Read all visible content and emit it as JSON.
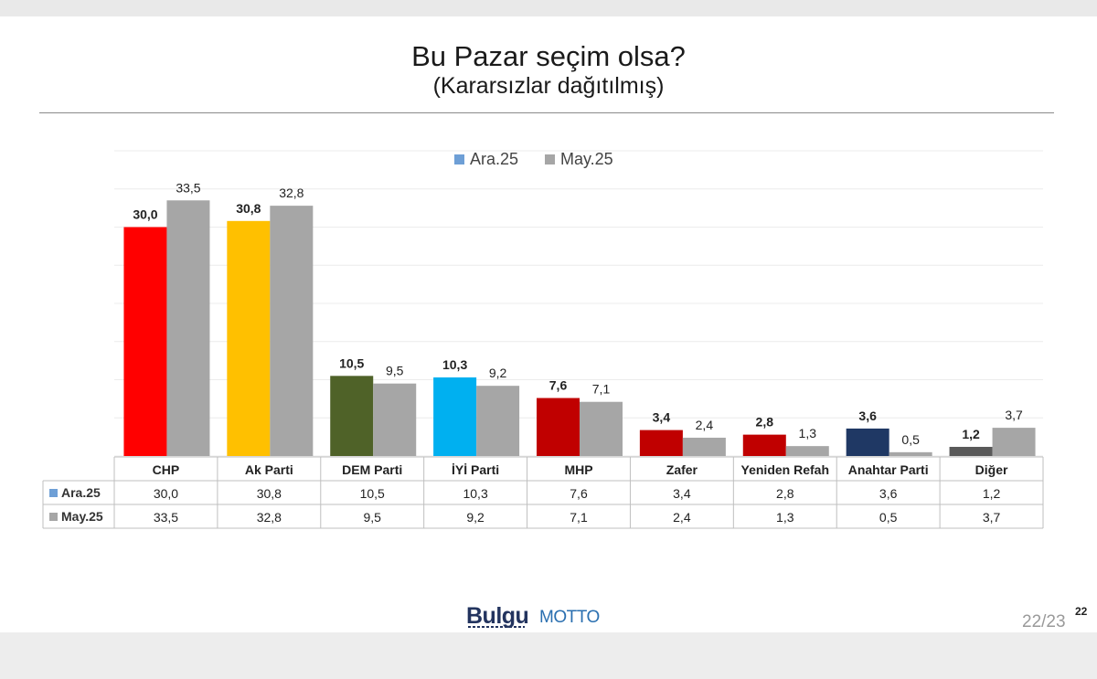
{
  "slide": {
    "title": "Bu Pazar seçim olsa?",
    "subtitle": "(Kararsızlar dağıtılmış)",
    "logo_primary": "Bulgu",
    "logo_secondary": "MOTTO",
    "page_number": "22/23",
    "page_superscript": "22"
  },
  "chart_data": {
    "type": "bar",
    "title": "Bu Pazar seçim olsa?",
    "subtitle": "(Kararsızlar dağıtılmış)",
    "categories": [
      "CHP",
      "Ak Parti",
      "DEM Parti",
      "İYİ Parti",
      "MHP",
      "Zafer",
      "Yeniden Refah",
      "Anahtar Parti",
      "Diğer"
    ],
    "series": [
      {
        "name": "Ara.25",
        "values": [
          30.0,
          30.8,
          10.5,
          10.3,
          7.6,
          3.4,
          2.8,
          3.6,
          1.2
        ],
        "labels": [
          "30,0",
          "30,8",
          "10,5",
          "10,3",
          "7,6",
          "3,4",
          "2,8",
          "3,6",
          "1,2"
        ],
        "colors": [
          "#ff0000",
          "#ffc000",
          "#4f6228",
          "#00b0f0",
          "#c00000",
          "#c00000",
          "#c00000",
          "#1f3864",
          "#595959"
        ],
        "legend_color": "#6e9fd6"
      },
      {
        "name": "May.25",
        "values": [
          33.5,
          32.8,
          9.5,
          9.2,
          7.1,
          2.4,
          1.3,
          0.5,
          3.7
        ],
        "labels": [
          "33,5",
          "32,8",
          "9,5",
          "9,2",
          "7,1",
          "2,4",
          "1,3",
          "0,5",
          "3,7"
        ],
        "color": "#a6a6a6",
        "legend_color": "#a6a6a6"
      }
    ],
    "ylim": [
      0,
      40
    ],
    "grid": true,
    "legend_position": "top-center",
    "data_table": true,
    "xlabel": "",
    "ylabel": ""
  }
}
